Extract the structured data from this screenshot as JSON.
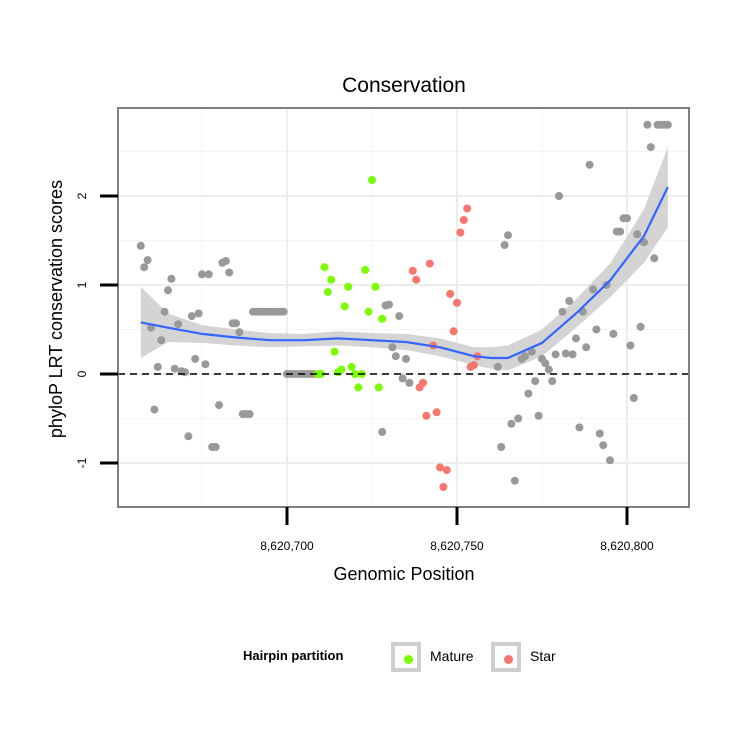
{
  "chart_data": {
    "type": "scatter",
    "title": "Conservation",
    "xlabel": "Genomic Position",
    "ylabel": "phyloP LRT conservation scores",
    "xlim": [
      8620650,
      8620820
    ],
    "ylim": [
      -1.5,
      3.0
    ],
    "x_ticks": [
      8620700,
      8620750,
      8620800
    ],
    "x_tick_labels": [
      "8,620,700",
      "8,620,750",
      "8,620,800"
    ],
    "y_ticks": [
      -1,
      0,
      1,
      2
    ],
    "y_tick_labels": [
      "-1",
      "0",
      "1",
      "2"
    ],
    "reference_line": {
      "y": 0,
      "style": "dashed"
    },
    "legend": {
      "title": "Hairpin partition",
      "entries": [
        {
          "label": "Mature",
          "color": "#7cfc00"
        },
        {
          "label": "Star",
          "color": "#f8766d"
        }
      ]
    },
    "colors": {
      "other": "#999999",
      "Mature": "#7cfc00",
      "Star": "#f8766d",
      "smooth": "#3366ff",
      "ribbon": "#cccccc"
    },
    "series": [
      {
        "name": "Other",
        "points": [
          [
            8620657,
            1.44
          ],
          [
            8620658,
            1.2
          ],
          [
            8620659,
            1.28
          ],
          [
            8620660,
            0.52
          ],
          [
            8620661,
            -0.4
          ],
          [
            8620662,
            0.08
          ],
          [
            8620663,
            0.38
          ],
          [
            8620664,
            0.7
          ],
          [
            8620665,
            0.94
          ],
          [
            8620666,
            1.07
          ],
          [
            8620667,
            0.06
          ],
          [
            8620668,
            0.56
          ],
          [
            8620669,
            0.03
          ],
          [
            8620670,
            0.02
          ],
          [
            8620671,
            -0.7
          ],
          [
            8620672,
            0.65
          ],
          [
            8620673,
            0.17
          ],
          [
            8620674,
            0.68
          ],
          [
            8620675,
            1.12
          ],
          [
            8620676,
            0.11
          ],
          [
            8620677,
            1.12
          ],
          [
            8620678,
            -0.82
          ],
          [
            8620679,
            -0.82
          ],
          [
            8620680,
            -0.35
          ],
          [
            8620681,
            1.25
          ],
          [
            8620682,
            1.27
          ],
          [
            8620683,
            1.14
          ],
          [
            8620684,
            0.57
          ],
          [
            8620685,
            0.57
          ],
          [
            8620686,
            0.47
          ],
          [
            8620687,
            -0.45
          ],
          [
            8620688,
            -0.45
          ],
          [
            8620689,
            -0.45
          ],
          [
            8620690,
            0.7
          ],
          [
            8620691,
            0.7
          ],
          [
            8620692,
            0.7
          ],
          [
            8620693,
            0.7
          ],
          [
            8620694,
            0.7
          ],
          [
            8620695,
            0.7
          ],
          [
            8620696,
            0.7
          ],
          [
            8620697,
            0.7
          ],
          [
            8620698,
            0.7
          ],
          [
            8620699,
            0.7
          ],
          [
            8620700,
            0.0
          ],
          [
            8620701,
            0.0
          ],
          [
            8620702,
            0.0
          ],
          [
            8620703,
            0.0
          ],
          [
            8620704,
            0.0
          ],
          [
            8620705,
            0.0
          ],
          [
            8620706,
            0.0
          ],
          [
            8620707,
            0.0
          ],
          [
            8620708,
            0.0
          ],
          [
            8620728,
            -0.65
          ],
          [
            8620729,
            0.77
          ],
          [
            8620730,
            0.78
          ],
          [
            8620731,
            0.3
          ],
          [
            8620732,
            0.2
          ],
          [
            8620733,
            0.65
          ],
          [
            8620734,
            -0.05
          ],
          [
            8620735,
            0.17
          ],
          [
            8620736,
            -0.1
          ],
          [
            8620762,
            0.08
          ],
          [
            8620763,
            -0.82
          ],
          [
            8620764,
            1.45
          ],
          [
            8620765,
            1.56
          ],
          [
            8620766,
            -0.56
          ],
          [
            8620767,
            -1.2
          ],
          [
            8620768,
            -0.5
          ],
          [
            8620769,
            0.17
          ],
          [
            8620770,
            0.2
          ],
          [
            8620771,
            -0.22
          ],
          [
            8620772,
            0.25
          ],
          [
            8620773,
            -0.08
          ],
          [
            8620774,
            -0.47
          ],
          [
            8620775,
            0.17
          ],
          [
            8620776,
            0.12
          ],
          [
            8620777,
            0.05
          ],
          [
            8620778,
            -0.08
          ],
          [
            8620779,
            0.22
          ],
          [
            8620780,
            2.0
          ],
          [
            8620781,
            0.7
          ],
          [
            8620782,
            0.23
          ],
          [
            8620783,
            0.82
          ],
          [
            8620784,
            0.22
          ],
          [
            8620785,
            0.4
          ],
          [
            8620786,
            -0.6
          ],
          [
            8620787,
            0.7
          ],
          [
            8620788,
            0.3
          ],
          [
            8620789,
            2.35
          ],
          [
            8620790,
            0.95
          ],
          [
            8620791,
            0.5
          ],
          [
            8620792,
            -0.67
          ],
          [
            8620793,
            -0.8
          ],
          [
            8620794,
            1.0
          ],
          [
            8620795,
            -0.97
          ],
          [
            8620796,
            0.45
          ],
          [
            8620797,
            1.6
          ],
          [
            8620798,
            1.6
          ],
          [
            8620799,
            1.75
          ],
          [
            8620800,
            1.75
          ],
          [
            8620801,
            0.32
          ],
          [
            8620802,
            -0.27
          ],
          [
            8620803,
            1.57
          ],
          [
            8620804,
            0.53
          ],
          [
            8620805,
            1.48
          ],
          [
            8620806,
            2.8
          ],
          [
            8620807,
            2.55
          ],
          [
            8620808,
            1.3
          ],
          [
            8620809,
            2.8
          ],
          [
            8620810,
            2.8
          ],
          [
            8620811,
            2.8
          ],
          [
            8620812,
            2.8
          ]
        ]
      },
      {
        "name": "Mature",
        "points": [
          [
            8620709,
            0.0
          ],
          [
            8620710,
            0.0
          ],
          [
            8620711,
            1.2
          ],
          [
            8620712,
            0.92
          ],
          [
            8620713,
            1.06
          ],
          [
            8620714,
            0.25
          ],
          [
            8620715,
            0.02
          ],
          [
            8620716,
            0.05
          ],
          [
            8620717,
            0.76
          ],
          [
            8620718,
            0.98
          ],
          [
            8620719,
            0.08
          ],
          [
            8620720,
            0.0
          ],
          [
            8620721,
            -0.15
          ],
          [
            8620722,
            0.0
          ],
          [
            8620723,
            1.17
          ],
          [
            8620724,
            0.7
          ],
          [
            8620725,
            2.18
          ],
          [
            8620726,
            0.98
          ],
          [
            8620727,
            -0.15
          ],
          [
            8620728,
            0.62
          ]
        ]
      },
      {
        "name": "Star",
        "points": [
          [
            8620737,
            1.16
          ],
          [
            8620738,
            1.06
          ],
          [
            8620739,
            -0.15
          ],
          [
            8620740,
            -0.1
          ],
          [
            8620741,
            -0.47
          ],
          [
            8620742,
            1.24
          ],
          [
            8620743,
            0.32
          ],
          [
            8620744,
            -0.43
          ],
          [
            8620745,
            -1.05
          ],
          [
            8620746,
            -1.27
          ],
          [
            8620747,
            -1.08
          ],
          [
            8620748,
            0.9
          ],
          [
            8620749,
            0.48
          ],
          [
            8620750,
            0.8
          ],
          [
            8620751,
            1.59
          ],
          [
            8620752,
            1.73
          ],
          [
            8620753,
            1.86
          ],
          [
            8620754,
            0.08
          ],
          [
            8620755,
            0.1
          ],
          [
            8620756,
            0.2
          ]
        ]
      }
    ],
    "smooth": {
      "x": [
        8620657,
        8620665,
        8620675,
        8620685,
        8620695,
        8620705,
        8620715,
        8620725,
        8620735,
        8620745,
        8620755,
        8620760,
        8620765,
        8620775,
        8620785,
        8620795,
        8620805,
        8620812
      ],
      "y": [
        0.58,
        0.52,
        0.45,
        0.41,
        0.38,
        0.38,
        0.4,
        0.38,
        0.36,
        0.3,
        0.2,
        0.18,
        0.18,
        0.35,
        0.68,
        1.05,
        1.55,
        2.1
      ],
      "lower": [
        0.18,
        0.36,
        0.35,
        0.32,
        0.3,
        0.31,
        0.32,
        0.3,
        0.27,
        0.2,
        0.1,
        0.06,
        0.04,
        0.2,
        0.52,
        0.86,
        1.25,
        1.65
      ],
      "upper": [
        0.98,
        0.68,
        0.55,
        0.5,
        0.46,
        0.45,
        0.48,
        0.46,
        0.45,
        0.4,
        0.3,
        0.3,
        0.32,
        0.5,
        0.84,
        1.24,
        1.85,
        2.55
      ]
    }
  }
}
